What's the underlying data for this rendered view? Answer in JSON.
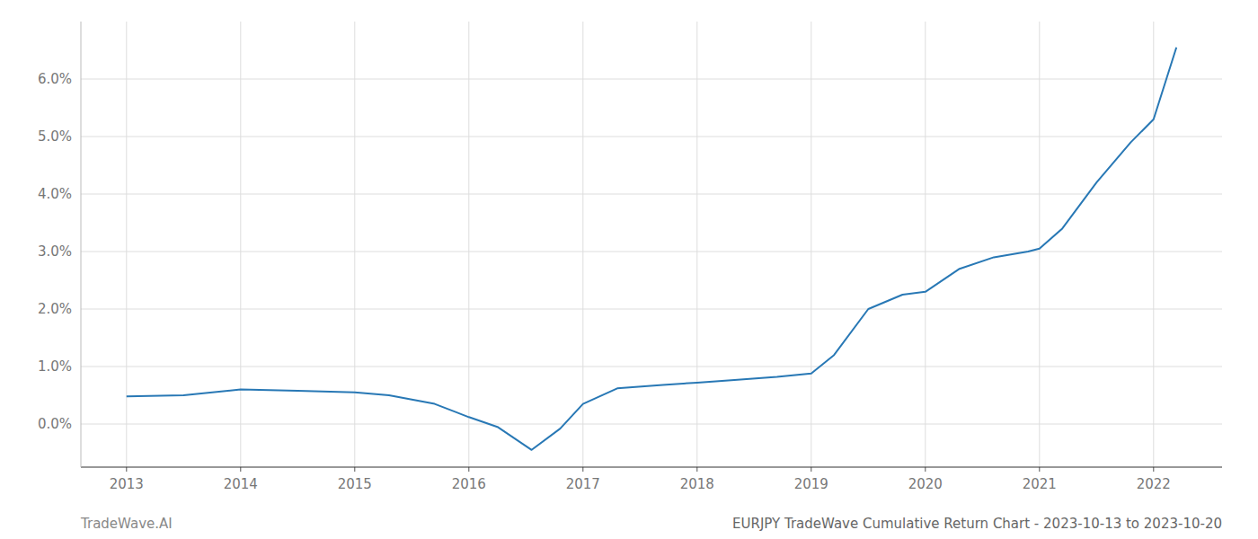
{
  "chart_data": {
    "type": "line",
    "title": "EURJPY TradeWave Cumulative Return Chart - 2023-10-13 to 2023-10-20",
    "annotations": [
      "TradeWave.AI"
    ],
    "x": [
      2013.0,
      2013.5,
      2014.0,
      2014.5,
      2015.0,
      2015.3,
      2015.7,
      2016.0,
      2016.25,
      2016.55,
      2016.8,
      2017.0,
      2017.3,
      2017.7,
      2018.0,
      2018.3,
      2018.7,
      2019.0,
      2019.2,
      2019.5,
      2019.8,
      2020.0,
      2020.3,
      2020.6,
      2020.9,
      2021.0,
      2021.2,
      2021.5,
      2021.8,
      2022.0,
      2022.2
    ],
    "values": [
      0.0048,
      0.005,
      0.006,
      0.0058,
      0.0055,
      0.005,
      0.0035,
      0.0012,
      -0.0005,
      -0.0045,
      -0.0008,
      0.0035,
      0.0062,
      0.0068,
      0.0072,
      0.0076,
      0.0082,
      0.0088,
      0.012,
      0.02,
      0.0225,
      0.023,
      0.027,
      0.029,
      0.03,
      0.0305,
      0.034,
      0.042,
      0.049,
      0.053,
      0.0655
    ],
    "color": "#2878b5",
    "xlim": [
      2012.6,
      2022.6
    ],
    "ylim": [
      -0.0075,
      0.07
    ],
    "xticks": [
      2013,
      2014,
      2015,
      2016,
      2017,
      2018,
      2019,
      2020,
      2021,
      2022
    ],
    "yticks": [
      {
        "value": 0.0,
        "label": "0.0%"
      },
      {
        "value": 0.01,
        "label": "1.0%"
      },
      {
        "value": 0.02,
        "label": "2.0%"
      },
      {
        "value": 0.03,
        "label": "3.0%"
      },
      {
        "value": 0.04,
        "label": "4.0%"
      },
      {
        "value": 0.05,
        "label": "5.0%"
      },
      {
        "value": 0.06,
        "label": "6.0%"
      }
    ],
    "grid": true
  }
}
